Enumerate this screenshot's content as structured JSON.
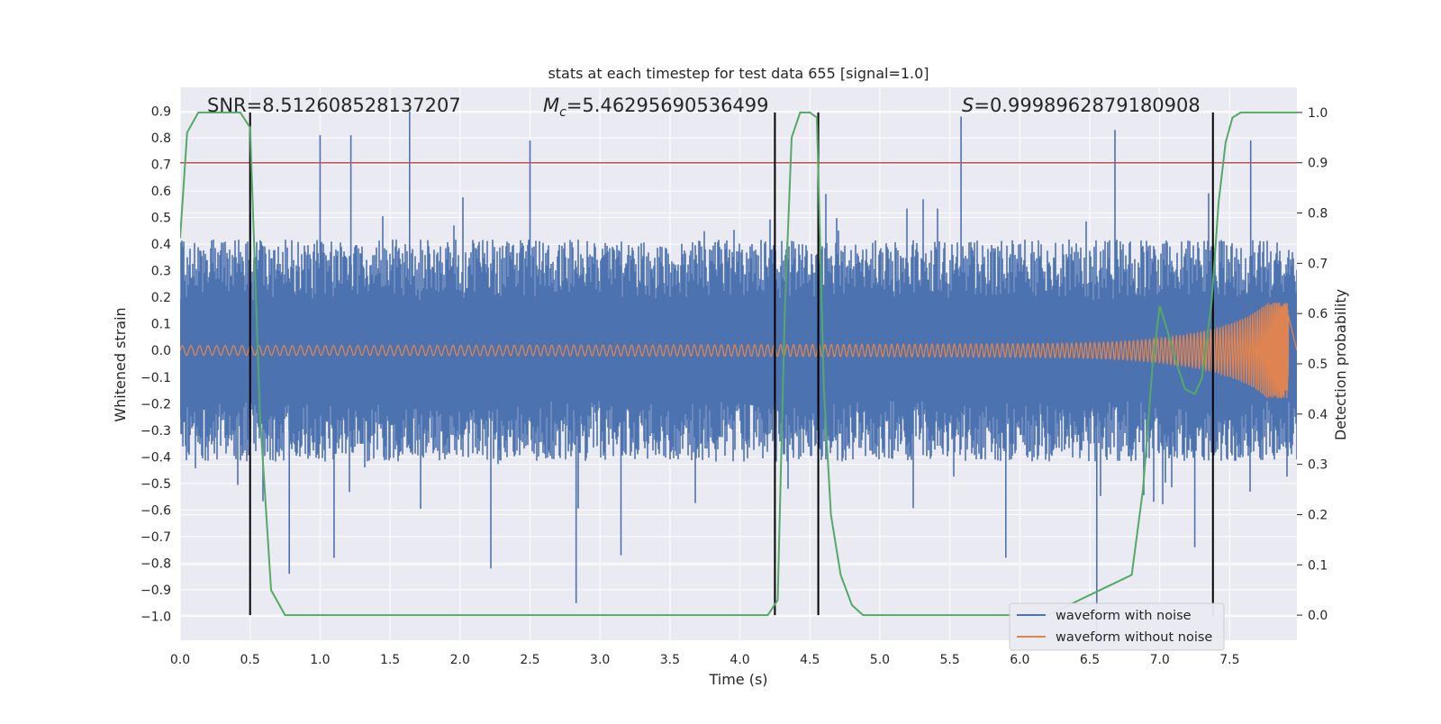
{
  "chart_data": {
    "type": "line",
    "title": "stats at each timestep for test data 655 [signal=1.0]",
    "xlabel": "Time (s)",
    "ylabel": "Whitened strain",
    "y2label": "Detection probability",
    "xlim": [
      0.0,
      7.98
    ],
    "ylim": [
      -1.09,
      0.99
    ],
    "y2lim": [
      -0.05,
      1.05
    ],
    "xticks": [
      0.0,
      0.5,
      1.0,
      1.5,
      2.0,
      2.5,
      3.0,
      3.5,
      4.0,
      4.5,
      5.0,
      5.5,
      6.0,
      6.5,
      7.0,
      7.5
    ],
    "xtick_labels": [
      "0.0",
      "0.5",
      "1.0",
      "1.5",
      "2.0",
      "2.5",
      "3.0",
      "3.5",
      "4.0",
      "4.5",
      "5.0",
      "5.5",
      "6.0",
      "6.5",
      "7.0",
      "7.5"
    ],
    "yticks": [
      0.9,
      0.8,
      0.7,
      0.6,
      0.5,
      0.4,
      0.3,
      0.2,
      0.1,
      0.0,
      -0.1,
      -0.2,
      -0.3,
      -0.4,
      -0.5,
      -0.6,
      -0.7,
      -0.8,
      -0.9,
      -1.0
    ],
    "ytick_labels": [
      "0.9",
      "0.8",
      "0.7",
      "0.6",
      "0.5",
      "0.4",
      "0.3",
      "0.2",
      "0.1",
      "0.0",
      "−0.1",
      "−0.2",
      "−0.3",
      "−0.4",
      "−0.5",
      "−0.6",
      "−0.7",
      "−0.8",
      "−0.9",
      "−1.0"
    ],
    "y2ticks": [
      1.0,
      0.9,
      0.8,
      0.7,
      0.6,
      0.5,
      0.4,
      0.3,
      0.2,
      0.1,
      0.0
    ],
    "y2tick_labels": [
      "1.0",
      "0.9",
      "0.8",
      "0.7",
      "0.6",
      "0.5",
      "0.4",
      "0.3",
      "0.2",
      "0.1",
      "0.0"
    ],
    "annotations": {
      "snr": "SNR=8.512608528137207",
      "mc_symbol": "M",
      "mc_sub": "c",
      "mc_value": "=5.46295690536499",
      "s_symbol": "S",
      "s_value": "=0.9998962879180908"
    },
    "threshold": {
      "axis": "y2",
      "value": 0.9,
      "color": "#c44e52"
    },
    "event_lines_x": [
      0.5,
      4.25,
      4.56,
      7.38
    ],
    "legend": {
      "position": "lower-right",
      "entries": [
        {
          "label": "waveform with noise",
          "color": "#4c72b0"
        },
        {
          "label": "waveform without noise",
          "color": "#dd8452"
        }
      ]
    },
    "series": [
      {
        "name": "waveform with noise",
        "axis": "y",
        "color": "#4c72b0",
        "kind": "noise-band",
        "typical_band": [
          -0.42,
          0.42
        ],
        "spikes": [
          [
            1.0,
            0.81
          ],
          [
            1.64,
            0.9
          ],
          [
            1.22,
            0.81
          ],
          [
            2.5,
            0.79
          ],
          [
            5.58,
            0.88
          ],
          [
            6.68,
            0.83
          ],
          [
            7.65,
            0.79
          ],
          [
            0.78,
            -0.84
          ],
          [
            2.22,
            -0.82
          ],
          [
            2.83,
            -0.95
          ],
          [
            6.55,
            -1.09
          ],
          [
            1.1,
            -0.78
          ],
          [
            3.15,
            -0.77
          ],
          [
            5.9,
            -0.78
          ],
          [
            7.25,
            -0.74
          ]
        ]
      },
      {
        "name": "waveform without noise",
        "axis": "y",
        "color": "#dd8452",
        "kind": "chirp",
        "t_coalescence": 7.92,
        "start_amplitude": 0.018,
        "peak_amplitude": 0.18
      },
      {
        "name": "detection probability",
        "axis": "y2",
        "color": "#55a868",
        "x": [
          0.0,
          0.05,
          0.13,
          0.2,
          0.3,
          0.43,
          0.5,
          0.57,
          0.65,
          0.75,
          0.82,
          4.2,
          4.27,
          4.32,
          4.37,
          4.43,
          4.5,
          4.55,
          4.6,
          4.65,
          4.72,
          4.8,
          4.88,
          5.0,
          5.9,
          6.2,
          6.8,
          6.88,
          6.95,
          7.0,
          7.05,
          7.12,
          7.18,
          7.25,
          7.3,
          7.37,
          7.42,
          7.47,
          7.52,
          7.58,
          7.98
        ],
        "y": [
          0.75,
          0.96,
          1.0,
          1.0,
          1.0,
          1.0,
          0.97,
          0.4,
          0.05,
          0.0,
          0.0,
          0.0,
          0.03,
          0.6,
          0.95,
          1.0,
          1.0,
          0.99,
          0.45,
          0.2,
          0.08,
          0.02,
          0.0,
          0.0,
          0.0,
          0.0,
          0.08,
          0.25,
          0.5,
          0.615,
          0.57,
          0.5,
          0.45,
          0.44,
          0.47,
          0.62,
          0.82,
          0.94,
          0.99,
          1.0,
          1.0
        ]
      }
    ]
  }
}
